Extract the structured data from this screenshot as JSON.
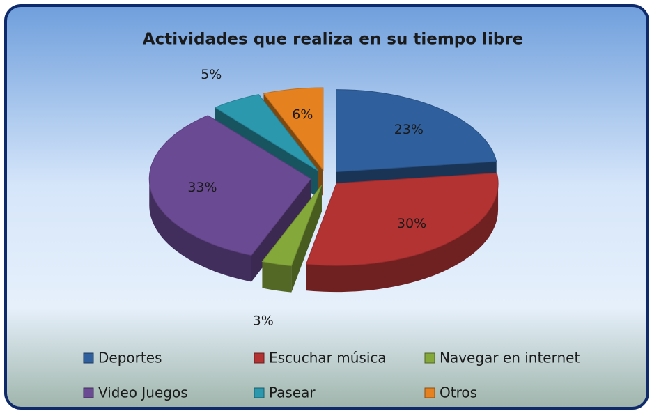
{
  "chart_data": {
    "type": "pie",
    "title": "Actividades que realiza en su tiempo libre",
    "categories": [
      "Deportes",
      "Escuchar música",
      "Navegar en internet",
      "Video Juegos",
      "Pasear",
      "Otros"
    ],
    "values": [
      23,
      30,
      3,
      33,
      5,
      6
    ],
    "value_labels": [
      "23%",
      "30%",
      "3%",
      "33%",
      "5%",
      "6%"
    ],
    "colors": [
      "#2f5f9c",
      "#b33333",
      "#84a83a",
      "#6b4a94",
      "#2c98ae",
      "#e5821f"
    ],
    "legend": "bottom"
  }
}
